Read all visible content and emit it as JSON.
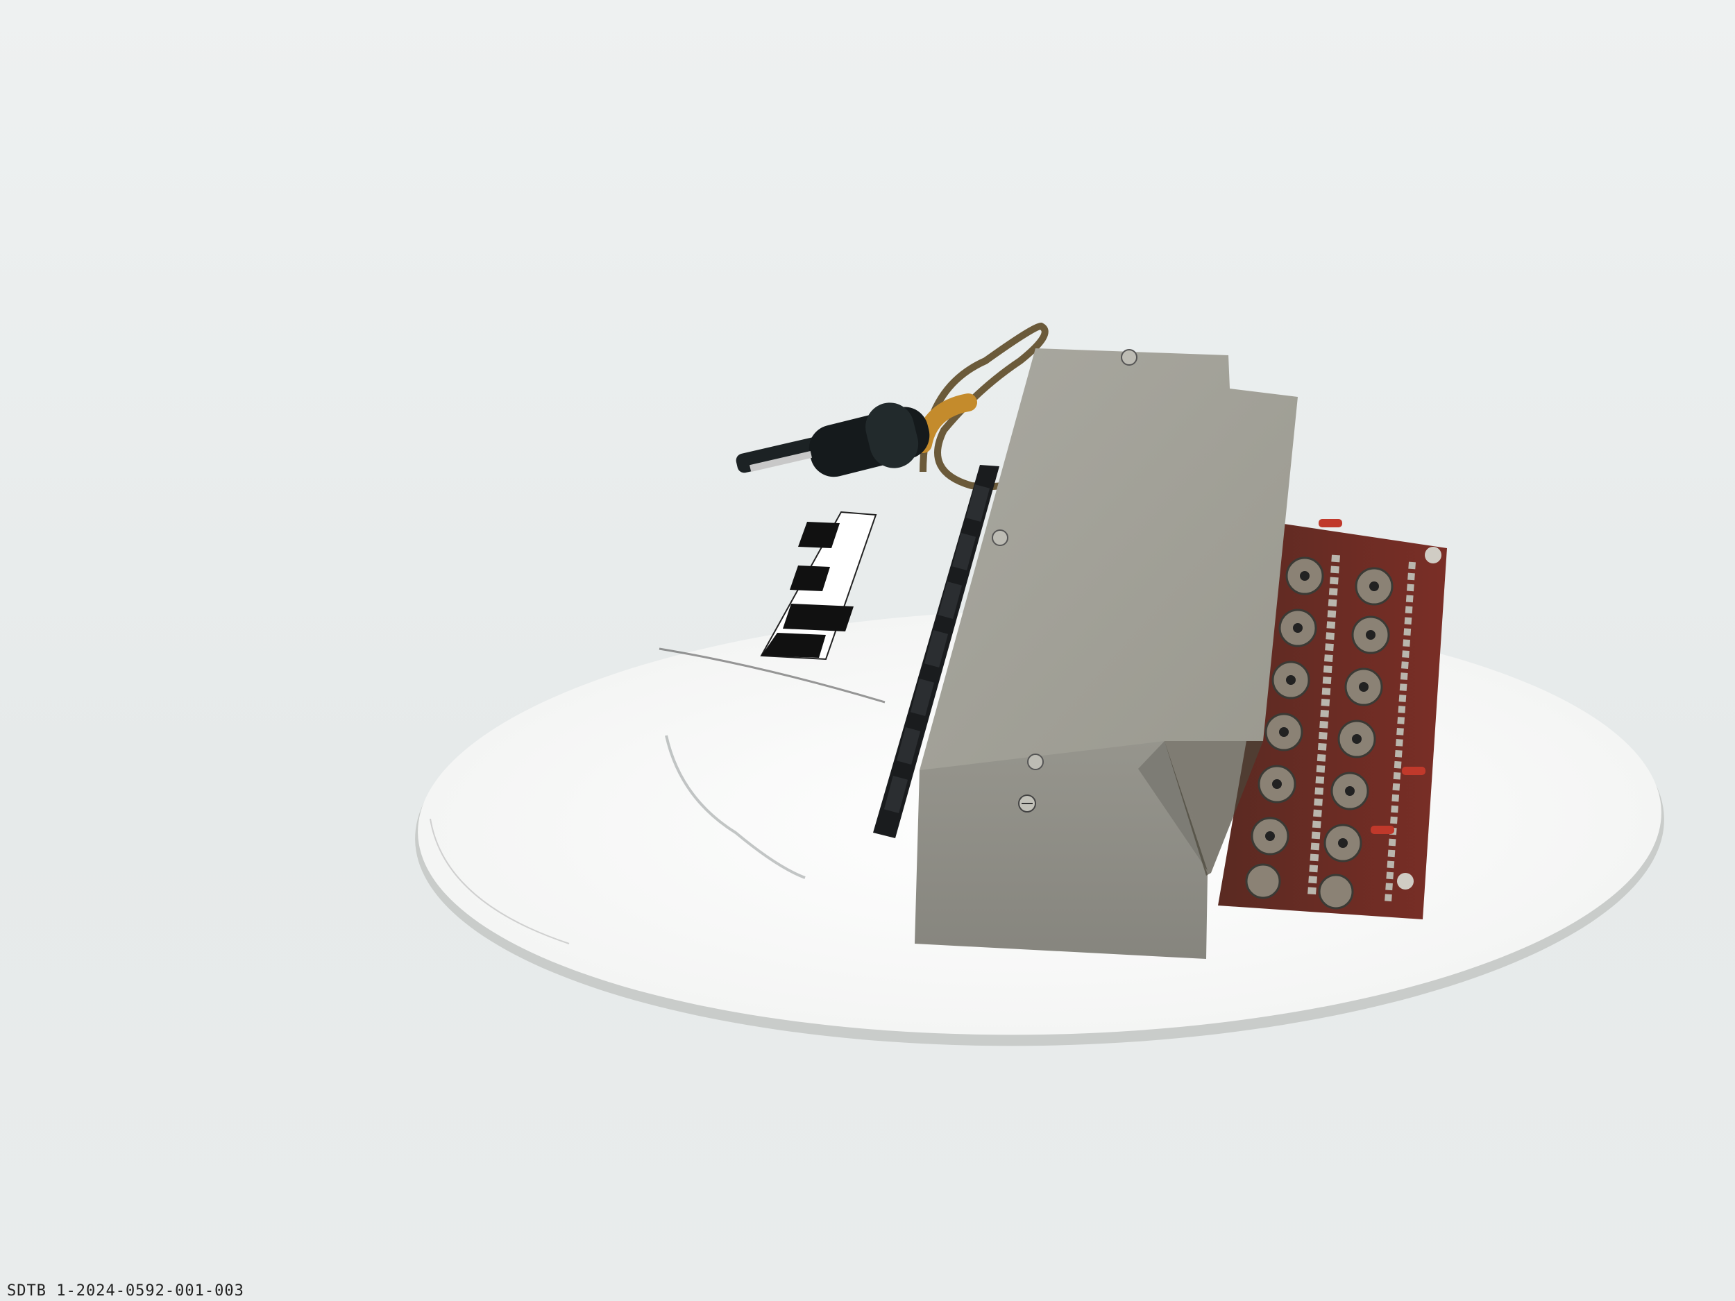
{
  "photo": {
    "caption": "SDTB 1-2024-0592-001-003",
    "colors": {
      "background": "#e8ecec",
      "turntable": "#f7f7f5",
      "housing": "#9b9a92",
      "housing_front": "#8e8d86",
      "circuit_board": "#6e2a22",
      "keys": "#1a1c1e",
      "plug": "#151a1c",
      "cable": "#b58a3a"
    },
    "icons": {
      "scale": "measurement-scale-icon",
      "plug": "plug-icon"
    }
  }
}
